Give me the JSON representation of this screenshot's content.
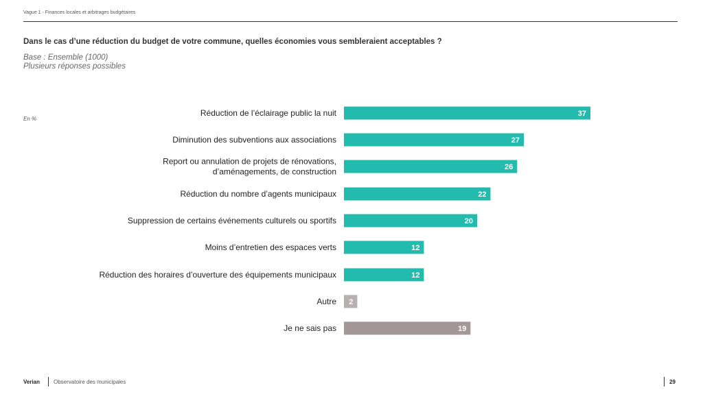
{
  "header": {
    "wave": "Vague 1 - Finances locales et arbitrages budgétaires"
  },
  "question": "Dans le cas d’une réduction du budget de votre commune, quelles économies vous sembleraient acceptables ?",
  "base_line1": "Base : Ensemble (1000)",
  "base_line2": "Plusieurs réponses possibles",
  "unit": "En %",
  "colors": {
    "main": "#22bbad",
    "autre": "#b8b0ae",
    "nsp": "#a39897"
  },
  "chart_data": {
    "type": "bar",
    "orientation": "horizontal",
    "categories": [
      [
        "Réduction de l’éclairage public la nuit"
      ],
      [
        "Diminution des subventions aux associations"
      ],
      [
        "Report ou annulation de projets de rénovations,",
        "d’aménagements, de construction"
      ],
      [
        "Réduction du nombre d’agents municipaux"
      ],
      [
        "Suppression de certains événements culturels ou sportifs"
      ],
      [
        "Moins d’entretien des espaces verts"
      ],
      [
        "Réduction des horaires d’ouverture des équipements municipaux"
      ],
      [
        "Autre"
      ],
      [
        "Je ne sais pas"
      ]
    ],
    "values": [
      37,
      27,
      26,
      22,
      20,
      12,
      12,
      2,
      19
    ],
    "value_labels": [
      "37",
      "27",
      "26",
      "22",
      "20",
      "12",
      "12",
      "2",
      "19"
    ],
    "bar_colors": [
      "main",
      "main",
      "main",
      "main",
      "main",
      "main",
      "main",
      "autre",
      "nsp"
    ],
    "xlim": [
      0,
      37
    ]
  },
  "footer": {
    "brand": "Verian",
    "text": "Observatoire des municipales",
    "page": "29"
  }
}
